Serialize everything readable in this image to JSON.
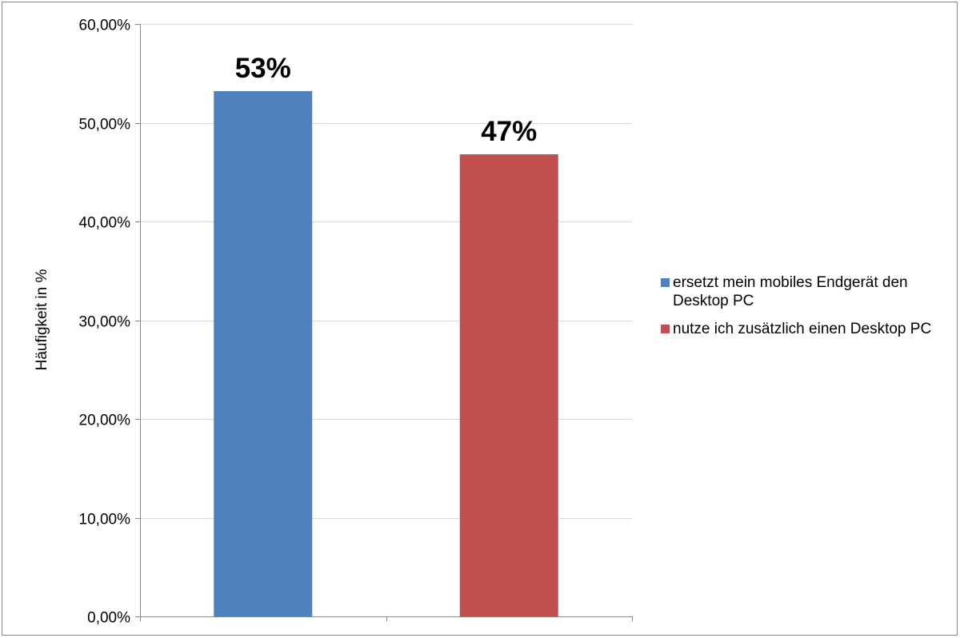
{
  "chart_data": {
    "type": "bar",
    "title": "",
    "xlabel": "",
    "ylabel": "Häufigkeit in %",
    "ylim": [
      0,
      60
    ],
    "yticks": [
      0,
      10,
      20,
      30,
      40,
      50,
      60
    ],
    "ytick_labels": [
      "0,00%",
      "10,00%",
      "20,00%",
      "30,00%",
      "40,00%",
      "50,00%",
      "60,00%"
    ],
    "grid": true,
    "legend_position": "right",
    "series": [
      {
        "name": "ersetzt mein mobiles Endgerät den Desktop PC",
        "value": 53.2,
        "label": "53%",
        "color": "#4f81bd"
      },
      {
        "name": "nutze ich zusätzlich einen Desktop PC",
        "value": 46.8,
        "label": "47%",
        "color": "#c0504d"
      }
    ]
  }
}
